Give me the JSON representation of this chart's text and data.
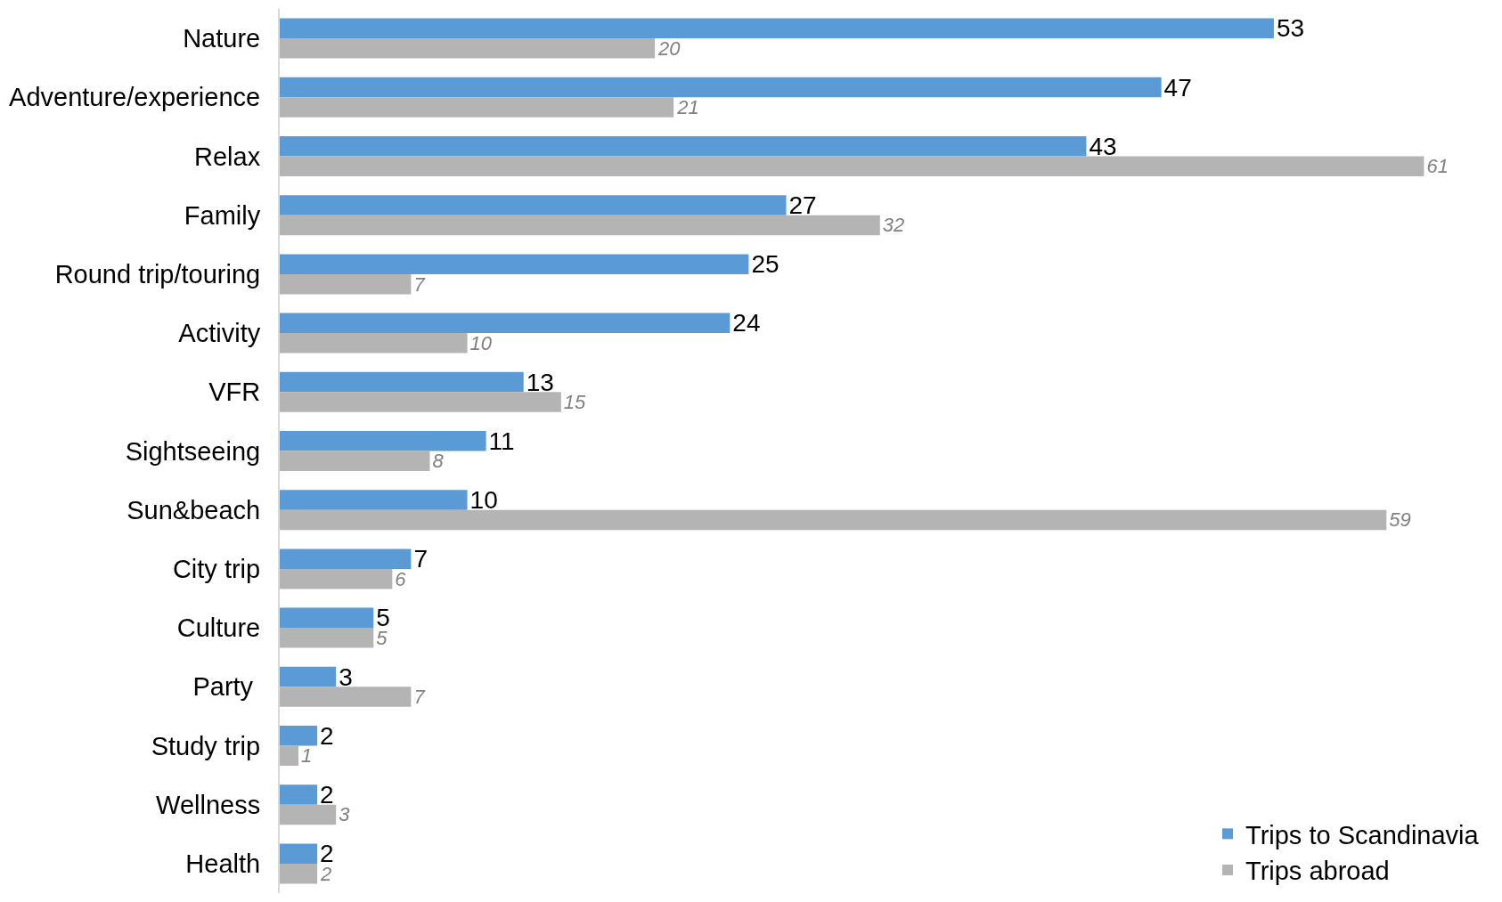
{
  "chart_data": {
    "type": "bar",
    "orientation": "horizontal",
    "data_labels": true,
    "legend": "bottom right",
    "tick_labels": "y",
    "categories": [
      "Nature",
      "Adventure/experience",
      "Relax",
      "Family",
      "Round trip/touring",
      "Activity",
      "VFR",
      "Sightseeing",
      "Sun&beach",
      "City trip",
      "Culture",
      "Party ",
      "Study trip",
      "Wellness",
      "Health"
    ],
    "series": [
      {
        "name": "Trips to Scandinavia",
        "color": "#5b9bd5",
        "values": [
          53,
          47,
          43,
          27,
          25,
          24,
          13,
          11,
          10,
          7,
          5,
          3,
          2,
          2,
          2
        ]
      },
      {
        "name": "Trips abroad",
        "color": "#b4b4b4",
        "values": [
          20,
          21,
          61,
          32,
          7,
          10,
          15,
          8,
          59,
          6,
          5,
          7,
          1,
          3,
          2
        ]
      }
    ]
  }
}
